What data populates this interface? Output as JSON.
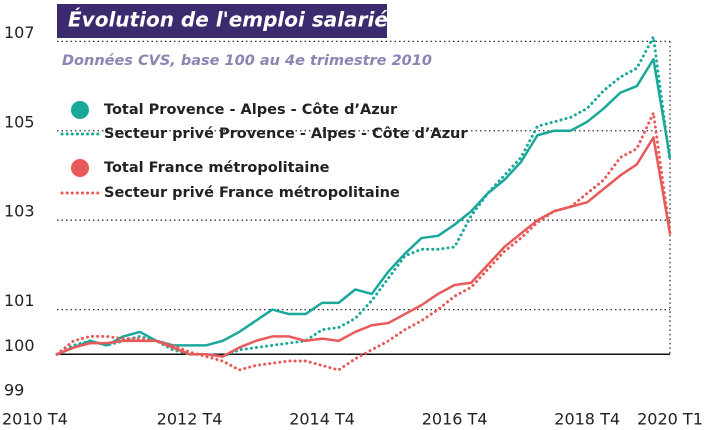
{
  "chart_data": {
    "type": "line",
    "title": "Évolution de l'emploi salarié",
    "subtitle": "Données CVS, base 100 au 4e trimestre 2010",
    "categories": [
      "2010 T4",
      null,
      null,
      null,
      null,
      null,
      null,
      null,
      "2012 T4",
      null,
      null,
      null,
      null,
      null,
      null,
      null,
      "2014 T4",
      null,
      null,
      null,
      null,
      null,
      null,
      null,
      "2016 T4",
      null,
      null,
      null,
      null,
      null,
      null,
      null,
      "2018 T4",
      null,
      null,
      null,
      null,
      "2020 T1"
    ],
    "series": [
      {
        "name": "Total Provence - Alpes - Côte d’Azur",
        "color": "#1aa89a",
        "style": "solid",
        "values": [
          100.0,
          100.15,
          100.3,
          100.2,
          100.4,
          100.5,
          100.3,
          100.2,
          100.2,
          100.2,
          100.3,
          100.5,
          100.75,
          101.0,
          100.9,
          100.9,
          101.15,
          101.15,
          101.45,
          101.35,
          101.85,
          102.25,
          102.6,
          102.65,
          102.9,
          103.2,
          103.6,
          103.9,
          104.3,
          104.9,
          105.0,
          105.0,
          105.2,
          105.5,
          105.85,
          106.0,
          106.6,
          104.4
        ]
      },
      {
        "name": "Secteur privé Provence - Alpes - Côte d’Azur",
        "color": "#1aa89a",
        "style": "dotted",
        "values": [
          100.0,
          100.2,
          100.3,
          100.2,
          100.3,
          100.4,
          100.3,
          100.1,
          100.0,
          100.0,
          99.95,
          100.1,
          100.15,
          100.2,
          100.25,
          100.3,
          100.55,
          100.6,
          100.8,
          101.2,
          101.7,
          102.2,
          102.35,
          102.35,
          102.4,
          103.1,
          103.6,
          104.0,
          104.4,
          105.1,
          105.2,
          105.3,
          105.5,
          105.9,
          106.2,
          106.4,
          107.1,
          104.3
        ]
      },
      {
        "name": "Total France métropolitaine",
        "color": "#e85a5a",
        "style": "solid",
        "values": [
          100.0,
          100.15,
          100.25,
          100.25,
          100.3,
          100.3,
          100.3,
          100.15,
          100.0,
          100.0,
          99.95,
          100.15,
          100.3,
          100.4,
          100.4,
          100.3,
          100.35,
          100.3,
          100.5,
          100.65,
          100.7,
          100.9,
          101.1,
          101.35,
          101.55,
          101.6,
          102.0,
          102.4,
          102.7,
          103.0,
          103.2,
          103.3,
          103.4,
          103.7,
          104.0,
          104.25,
          104.85,
          102.7
        ]
      },
      {
        "name": "Secteur privé France métropolitaine",
        "color": "#e85a5a",
        "style": "dotted",
        "values": [
          100.0,
          100.3,
          100.4,
          100.4,
          100.35,
          100.35,
          100.3,
          100.2,
          100.05,
          99.95,
          99.85,
          99.65,
          99.75,
          99.8,
          99.85,
          99.85,
          99.75,
          99.65,
          99.9,
          100.1,
          100.3,
          100.55,
          100.75,
          101.0,
          101.3,
          101.5,
          101.9,
          102.3,
          102.6,
          102.95,
          103.2,
          103.3,
          103.6,
          103.9,
          104.4,
          104.6,
          105.4,
          102.7
        ]
      }
    ],
    "ylim": [
      99,
      107.5
    ],
    "yticks": [
      99,
      100,
      101,
      103,
      105,
      107
    ],
    "reference_line": 100,
    "grid": true,
    "title_background": "#3b2a6d",
    "subtitle_color": "#8d84b4"
  }
}
